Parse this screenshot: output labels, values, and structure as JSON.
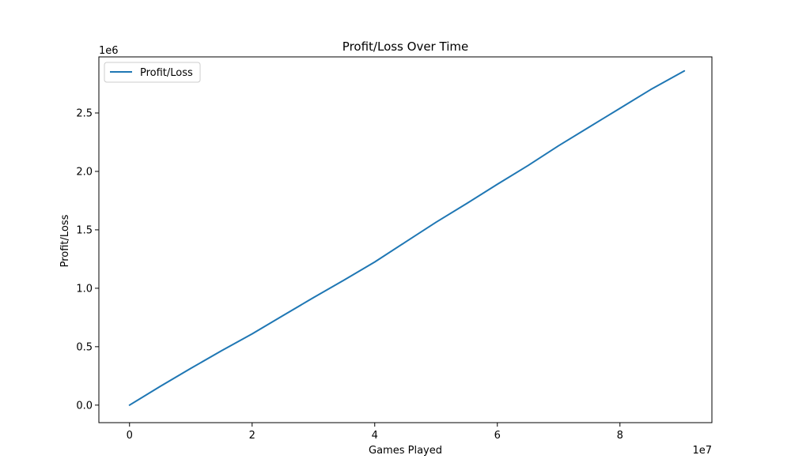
{
  "chart_data": {
    "type": "line",
    "title": "Profit/Loss Over Time",
    "xlabel": "Games Played",
    "ylabel": "Profit/Loss",
    "x_offset_label": "1e7",
    "y_offset_label": "1e6",
    "xlim": [
      -5000000,
      95000000
    ],
    "ylim": [
      -150000,
      2980000
    ],
    "x_ticks": [
      0,
      20000000,
      40000000,
      60000000,
      80000000
    ],
    "x_tick_labels": [
      "0",
      "2",
      "4",
      "6",
      "8"
    ],
    "y_ticks": [
      0,
      500000,
      1000000,
      1500000,
      2000000,
      2500000
    ],
    "y_tick_labels": [
      "0.0",
      "0.5",
      "1.0",
      "1.5",
      "2.0",
      "2.5"
    ],
    "grid": false,
    "legend_placement": "top-left",
    "series": [
      {
        "name": "Profit/Loss",
        "color": "#1f77b4",
        "x": [
          0,
          5000000,
          10000000,
          15000000,
          20000000,
          25000000,
          30000000,
          35000000,
          40000000,
          45000000,
          50000000,
          55000000,
          60000000,
          65000000,
          70000000,
          75000000,
          80000000,
          85000000,
          90500000
        ],
        "y": [
          0,
          160000,
          315000,
          465000,
          610000,
          765000,
          920000,
          1070000,
          1225000,
          1395000,
          1565000,
          1725000,
          1890000,
          2050000,
          2220000,
          2380000,
          2540000,
          2700000,
          2860000
        ]
      }
    ]
  }
}
